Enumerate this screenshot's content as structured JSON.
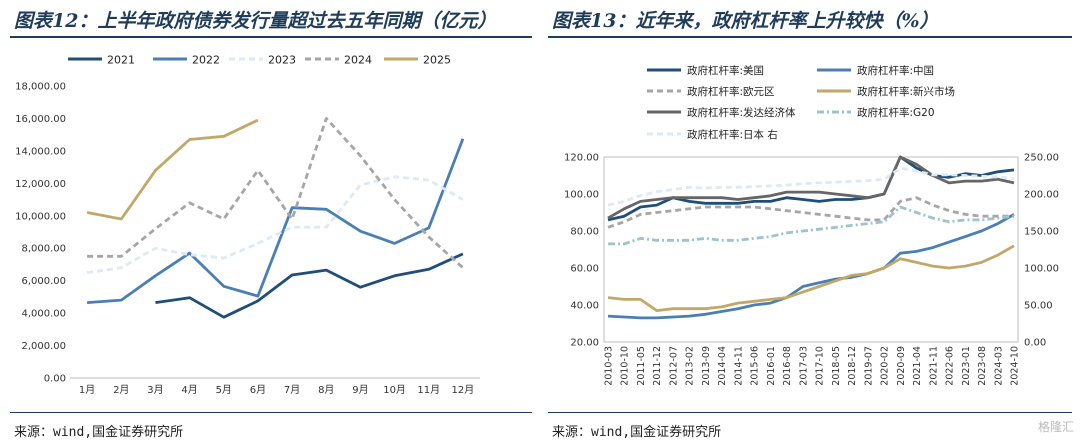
{
  "left": {
    "title": "图表12：上半年政府债券发行量超过去五年同期（亿元）",
    "source": "来源：wind,国金证券研究所"
  },
  "right": {
    "title": "图表13：近年来，政府杠杆率上升较快（%）",
    "source": "来源：wind,国金证券研究所"
  },
  "watermark": "格隆汇",
  "chart_data": [
    {
      "type": "line",
      "title": "",
      "categories": [
        "1月",
        "2月",
        "3月",
        "4月",
        "5月",
        "6月",
        "7月",
        "8月",
        "9月",
        "10月",
        "11月",
        "12月"
      ],
      "ylim": [
        0,
        18000
      ],
      "yticks": [
        0,
        2000,
        4000,
        6000,
        8000,
        10000,
        12000,
        14000,
        16000,
        18000
      ],
      "ytick_labels": [
        "0.00",
        "2,000.00",
        "4,000.00",
        "6,000.00",
        "8,000.00",
        "10,000.00",
        "12,000.00",
        "14,000.00",
        "16,000.00",
        "18,000.00"
      ],
      "legend_position": "top",
      "series": [
        {
          "name": "2021",
          "color": "#1f4e79",
          "dash": "solid",
          "values": [
            null,
            null,
            4650,
            4950,
            3750,
            4750,
            6350,
            6650,
            5600,
            6300,
            6700,
            7650
          ]
        },
        {
          "name": "2022",
          "color": "#4a7fb5",
          "dash": "solid",
          "values": [
            4650,
            4800,
            6300,
            7700,
            5650,
            5050,
            10500,
            10400,
            9050,
            8300,
            9250,
            14750
          ]
        },
        {
          "name": "2023",
          "color": "#dde9f5",
          "dash": "dashed",
          "values": [
            6500,
            6800,
            8000,
            7600,
            7400,
            8300,
            9300,
            9300,
            11900,
            12400,
            12200,
            11000
          ]
        },
        {
          "name": "2024",
          "color": "#a6a6a6",
          "dash": "dashed",
          "values": [
            7500,
            7500,
            9200,
            10800,
            9800,
            12800,
            9800,
            16000,
            13700,
            11000,
            8700,
            6800
          ]
        },
        {
          "name": "2025",
          "color": "#c2a868",
          "dash": "solid",
          "values": [
            10200,
            9800,
            12800,
            14700,
            14900,
            15900,
            null,
            null,
            null,
            null,
            null,
            null
          ]
        }
      ]
    },
    {
      "type": "line",
      "title": "",
      "categories": [
        "2010-03",
        "2010-10",
        "2011-05",
        "2011-12",
        "2012-07",
        "2013-02",
        "2013-09",
        "2014-04",
        "2014-11",
        "2015-06",
        "2016-01",
        "2016-08",
        "2017-03",
        "2017-10",
        "2018-05",
        "2018-12",
        "2019-07",
        "2020-02",
        "2020-09",
        "2021-04",
        "2021-11",
        "2022-06",
        "2023-01",
        "2023-08",
        "2024-03",
        "2024-10"
      ],
      "ylim_left": [
        20,
        120
      ],
      "yticks_left": [
        20,
        40,
        60,
        80,
        100,
        120
      ],
      "ytick_labels_left": [
        "20.00",
        "40.00",
        "60.00",
        "80.00",
        "100.00",
        "120.00"
      ],
      "ylim_right": [
        0,
        250
      ],
      "yticks_right": [
        0,
        50,
        100,
        150,
        200,
        250
      ],
      "ytick_labels_right": [
        "0.00",
        "50.00",
        "100.00",
        "150.00",
        "200.00",
        "250.00"
      ],
      "legend_position": "top",
      "series": [
        {
          "name": "政府杠杆率:美国",
          "color": "#1f4e79",
          "dash": "solid",
          "axis": "left",
          "values": [
            86,
            88,
            93,
            94,
            98,
            96,
            95,
            95,
            95,
            96,
            96,
            98,
            97,
            96,
            97,
            97,
            98,
            100,
            120,
            114,
            110,
            109,
            111,
            110,
            112,
            113
          ]
        },
        {
          "name": "政府杠杆率:中国",
          "color": "#4a7fb5",
          "dash": "solid",
          "axis": "left",
          "values": [
            34,
            33.5,
            33,
            33,
            33.5,
            34,
            35,
            36.5,
            38,
            40,
            41,
            44,
            50,
            52,
            54,
            55,
            57,
            60,
            68,
            69,
            71,
            74,
            77,
            80,
            84,
            89
          ]
        },
        {
          "name": "政府杠杆率:欧元区",
          "color": "#a6a6a6",
          "dash": "dashed",
          "axis": "left",
          "values": [
            82,
            85,
            89,
            90,
            91,
            92,
            93,
            93,
            93,
            93,
            92,
            91,
            90,
            89,
            88,
            87,
            86,
            86,
            96,
            98,
            94,
            91,
            89,
            88,
            88,
            88
          ]
        },
        {
          "name": "政府杠杆率:新兴市场",
          "color": "#c2a868",
          "dash": "solid",
          "axis": "left",
          "values": [
            44,
            43,
            43,
            37,
            38,
            38,
            38,
            39,
            41,
            42,
            43,
            44,
            47,
            50,
            53,
            56,
            57,
            60,
            65,
            63,
            61,
            60,
            61,
            63,
            67,
            72
          ]
        },
        {
          "name": "政府杠杆率:发达经济体",
          "color": "#666666",
          "dash": "solid",
          "axis": "left",
          "values": [
            87,
            92,
            96,
            97,
            98,
            98,
            98,
            98,
            97,
            98,
            99,
            101,
            101,
            101,
            100,
            99,
            98,
            100,
            120,
            116,
            110,
            106,
            107,
            107,
            108,
            106
          ]
        },
        {
          "name": "政府杠杆率:G20",
          "color": "#9cc3d0",
          "dash": "dashdot",
          "axis": "left",
          "values": [
            73,
            73,
            76,
            75,
            75,
            75,
            76,
            75,
            75,
            76,
            77,
            79,
            80,
            81,
            82,
            83,
            84,
            85,
            93,
            90,
            87,
            85,
            86,
            86,
            87,
            88
          ]
        },
        {
          "name": "政府杠杆率:日本 右",
          "color": "#dde9f5",
          "dash": "dashed",
          "axis": "right",
          "values": [
            185,
            190,
            198,
            203,
            206,
            209,
            208,
            209,
            209,
            210,
            211,
            212,
            214,
            215,
            216,
            217,
            218,
            220,
            235,
            231,
            226,
            226,
            225,
            224,
            223,
            221
          ]
        }
      ]
    }
  ]
}
